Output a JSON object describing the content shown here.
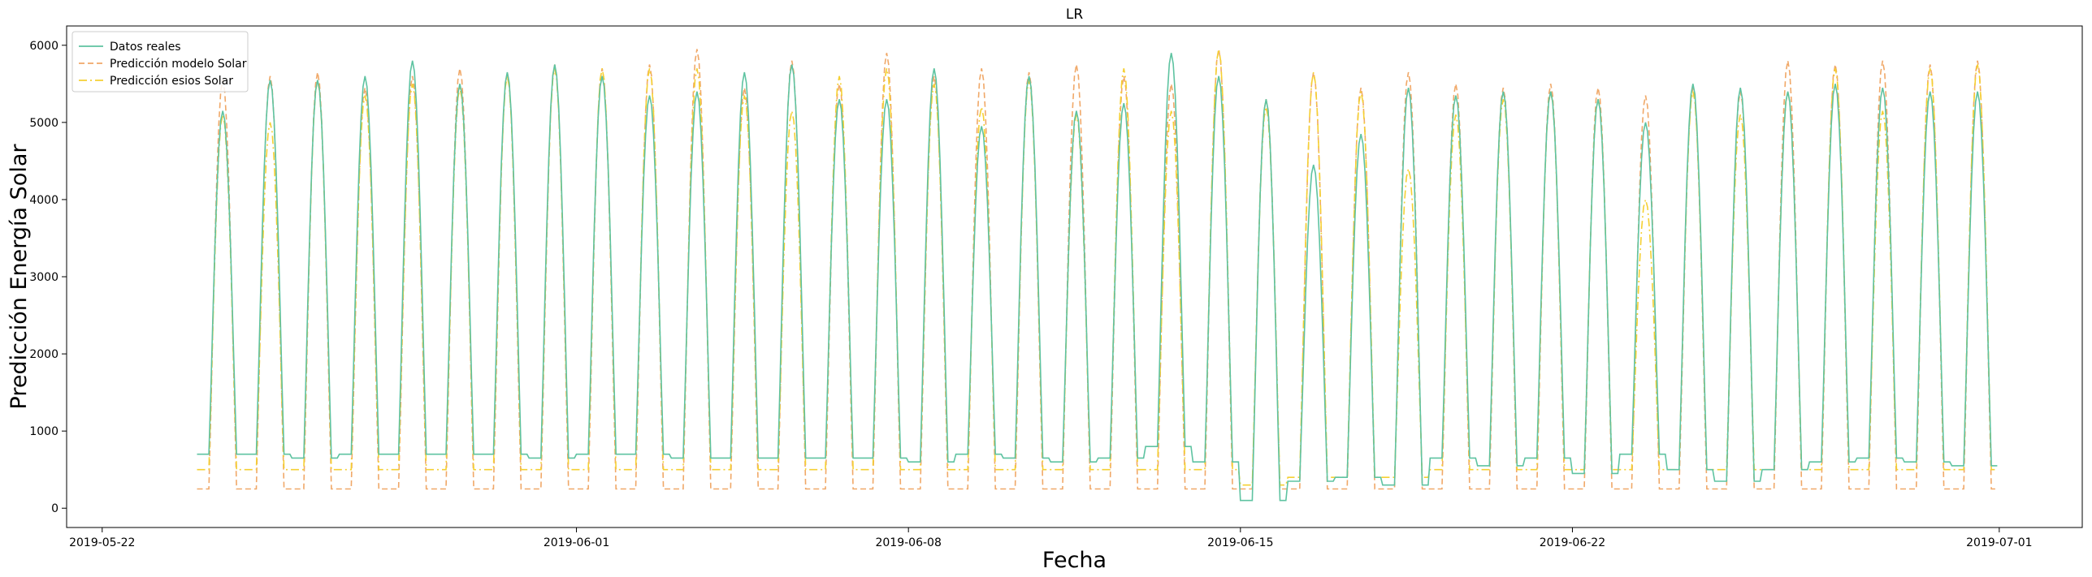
{
  "chart_data": {
    "type": "line",
    "title": "LR",
    "xlabel": "Fecha",
    "ylabel": "Predicción Energía Solar",
    "xlim": [
      "2019-05-21T06:00",
      "2019-07-02T18:00"
    ],
    "ylim": [
      -250,
      6250
    ],
    "x_ticks": [
      "2019-05-22",
      "2019-06-01",
      "2019-06-08",
      "2019-06-15",
      "2019-06-22",
      "2019-07-01"
    ],
    "y_ticks": [
      0,
      1000,
      2000,
      3000,
      4000,
      5000,
      6000
    ],
    "legend_position": "upper-left",
    "data_start": "2019-05-24T00:00",
    "data_end": "2019-06-30T23:00",
    "series": [
      {
        "name": "Datos reales",
        "color": "#5ec3a1",
        "style": "solid",
        "night_level": [
          700,
          700,
          650,
          700,
          700,
          700,
          700,
          650,
          700,
          700,
          650,
          650,
          650,
          650,
          650,
          600,
          700,
          650,
          600,
          650,
          800,
          600,
          100,
          350,
          400,
          300,
          650,
          550,
          650,
          450,
          700,
          500,
          350,
          500,
          600,
          650,
          600,
          550
        ],
        "daily_peaks": [
          5150,
          5550,
          5550,
          5600,
          5800,
          5500,
          5650,
          5750,
          5600,
          5350,
          5400,
          5650,
          5750,
          5300,
          5300,
          5700,
          4950,
          5600,
          5150,
          5250,
          5900,
          5600,
          5300,
          4450,
          4850,
          5450,
          5350,
          5400,
          5400,
          5300,
          5000,
          5500,
          5450,
          5400,
          5500,
          5450,
          5400,
          5400
        ]
      },
      {
        "name": "Predicción modelo Solar",
        "color": "#f0a868",
        "style": "dashed",
        "night_level": [
          250,
          250,
          250,
          250,
          250,
          250,
          250,
          250,
          250,
          250,
          250,
          250,
          250,
          250,
          250,
          250,
          250,
          250,
          250,
          250,
          250,
          250,
          250,
          250,
          250,
          250,
          250,
          250,
          250,
          250,
          250,
          250,
          250,
          250,
          250,
          250,
          250,
          250
        ],
        "daily_peaks": [
          5550,
          5600,
          5650,
          5450,
          5600,
          5700,
          5650,
          5750,
          5700,
          5750,
          5950,
          5450,
          5800,
          5500,
          5900,
          5600,
          5700,
          5650,
          5750,
          5600,
          5500,
          5950,
          5300,
          5650,
          5450,
          5650,
          5500,
          5450,
          5500,
          5450,
          5350,
          5450,
          5400,
          5800,
          5750,
          5800,
          5750,
          5800
        ]
      },
      {
        "name": "Predicción esios Solar",
        "color": "#f5d033",
        "style": "dashdot",
        "night_level": [
          500,
          500,
          500,
          500,
          500,
          500,
          500,
          500,
          500,
          500,
          500,
          500,
          500,
          500,
          500,
          500,
          500,
          500,
          500,
          500,
          500,
          500,
          300,
          400,
          400,
          400,
          500,
          500,
          500,
          500,
          500,
          500,
          500,
          500,
          500,
          500,
          500,
          500
        ],
        "daily_peaks": [
          5100,
          5000,
          5550,
          5350,
          5500,
          5450,
          5600,
          5700,
          5700,
          5700,
          5700,
          5350,
          5150,
          5600,
          5700,
          5500,
          5200,
          5550,
          5100,
          5700,
          5150,
          5950,
          5200,
          5650,
          5400,
          4400,
          5100,
          5300,
          5400,
          5300,
          4000,
          5400,
          5100,
          5400,
          5700,
          5150,
          5700,
          5750
        ]
      }
    ]
  }
}
